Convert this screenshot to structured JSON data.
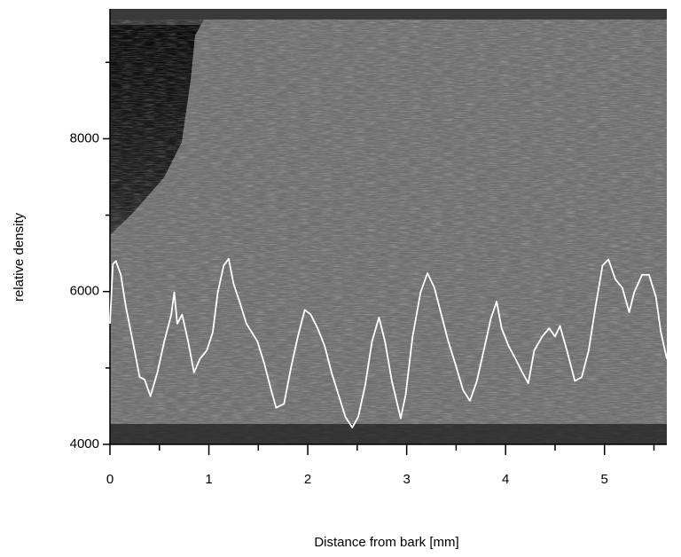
{
  "chart_data": {
    "type": "line",
    "x_label": "Distance from bark [mm]",
    "y_label": "relative density",
    "xlim": [
      0,
      5.63
    ],
    "ylim": [
      4000,
      9700
    ],
    "xticks": [
      0,
      1,
      2,
      3,
      4,
      5
    ],
    "xminor": [
      0.5,
      1.5,
      2.5,
      3.5,
      4.5,
      5.5
    ],
    "yticks": [
      4000,
      6000,
      8000
    ],
    "yminor": [
      5000,
      7000,
      9000
    ],
    "x": [
      0,
      0.03,
      0.06,
      0.11,
      0.16,
      0.23,
      0.3,
      0.35,
      0.41,
      0.48,
      0.55,
      0.62,
      0.65,
      0.68,
      0.73,
      0.79,
      0.85,
      0.91,
      0.98,
      1.04,
      1.09,
      1.15,
      1.2,
      1.25,
      1.31,
      1.38,
      1.49,
      1.56,
      1.63,
      1.68,
      1.76,
      1.83,
      1.9,
      1.97,
      2.03,
      2.1,
      2.17,
      2.24,
      2.31,
      2.38,
      2.45,
      2.51,
      2.58,
      2.65,
      2.72,
      2.78,
      2.85,
      2.94,
      2.99,
      3.06,
      3.14,
      3.21,
      3.28,
      3.35,
      3.42,
      3.49,
      3.57,
      3.64,
      3.71,
      3.78,
      3.85,
      3.91,
      3.96,
      4.03,
      4.1,
      4.17,
      4.23,
      4.29,
      4.37,
      4.44,
      4.5,
      4.55,
      4.62,
      4.7,
      4.77,
      4.84,
      4.91,
      4.98,
      5.04,
      5.11,
      5.18,
      5.25,
      5.3,
      5.38,
      5.45,
      5.52,
      5.57,
      5.63
    ],
    "series": [
      {
        "color": "#ffffff",
        "values": [
          5580,
          6360,
          6400,
          6220,
          5810,
          5350,
          4880,
          4850,
          4630,
          4940,
          5350,
          5700,
          5990,
          5580,
          5700,
          5350,
          4940,
          5120,
          5230,
          5470,
          5990,
          6340,
          6430,
          6100,
          5870,
          5580,
          5350,
          5060,
          4710,
          4480,
          4530,
          5000,
          5410,
          5760,
          5700,
          5520,
          5290,
          4940,
          4650,
          4360,
          4220,
          4360,
          4770,
          5350,
          5660,
          5350,
          4830,
          4340,
          4650,
          5410,
          5990,
          6240,
          6050,
          5700,
          5350,
          5060,
          4710,
          4570,
          4830,
          5230,
          5640,
          5870,
          5520,
          5290,
          5120,
          4940,
          4800,
          5230,
          5410,
          5520,
          5410,
          5550,
          5230,
          4830,
          4880,
          5230,
          5810,
          6340,
          6420,
          6160,
          6050,
          5730,
          5990,
          6220,
          6220,
          5930,
          5470,
          5120
        ]
      }
    ]
  }
}
